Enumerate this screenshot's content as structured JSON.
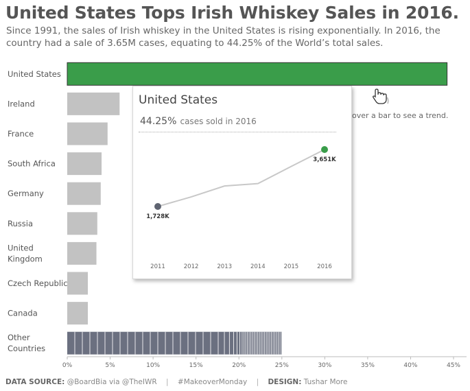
{
  "header": {
    "title": "United States Tops Irish Whiskey Sales in 2016.",
    "subtitle": "Since 1991, the sales of Irish whiskey in the United States is rising exponentially. In 2016, the country had a sale of 3.65M cases, equating to 44.25% of the World’s total sales."
  },
  "hint": "over a bar to see a trend.",
  "tooltip": {
    "title": "United States",
    "percent": "44.25%",
    "percent_suffix": "cases sold in 2016",
    "trend": {
      "years": [
        "2011",
        "2012",
        "2013",
        "2014",
        "2015",
        "2016"
      ],
      "values": [
        1728,
        2050,
        2420,
        2500,
        3080,
        3651
      ],
      "start_label": "1,728K",
      "end_label": "3,651K",
      "start_color": "#5f6471",
      "end_color": "#3a9d4a",
      "line_color": "#c8c8c8"
    }
  },
  "footer": {
    "source_label": "DATA SOURCE:",
    "source_value": "@BoardBia via @TheIWR",
    "hashtag": "#MakeoverMonday",
    "design_label": "DESIGN:",
    "design_value": "Tushar More"
  },
  "chart_data": {
    "type": "bar",
    "orientation": "horizontal",
    "categories": [
      "United States",
      "Ireland",
      "France",
      "South Africa",
      "Germany",
      "Russia",
      "United Kingdom",
      "Czech Republic",
      "Canada",
      "Other Countries"
    ],
    "category_display": [
      [
        "United States"
      ],
      [
        "Ireland"
      ],
      [
        "France"
      ],
      [
        "South Africa"
      ],
      [
        "Germany"
      ],
      [
        "Russia"
      ],
      [
        "United",
        "Kingdom"
      ],
      [
        "Czech Republic"
      ],
      [
        "Canada"
      ],
      [
        "Other",
        "Countries"
      ]
    ],
    "values": [
      44.25,
      6.1,
      4.7,
      4.0,
      3.9,
      3.5,
      3.4,
      2.4,
      2.4,
      25.0
    ],
    "xlim": [
      0,
      45
    ],
    "x_ticks": [
      "0%",
      "5%",
      "10%",
      "15%",
      "20%",
      "25%",
      "30%",
      "35%",
      "40%",
      "45%"
    ],
    "colors": {
      "highlight": "#3a9d4a",
      "default": "#c2c2c2",
      "other": "#6b7080",
      "outline": "#333333"
    }
  }
}
